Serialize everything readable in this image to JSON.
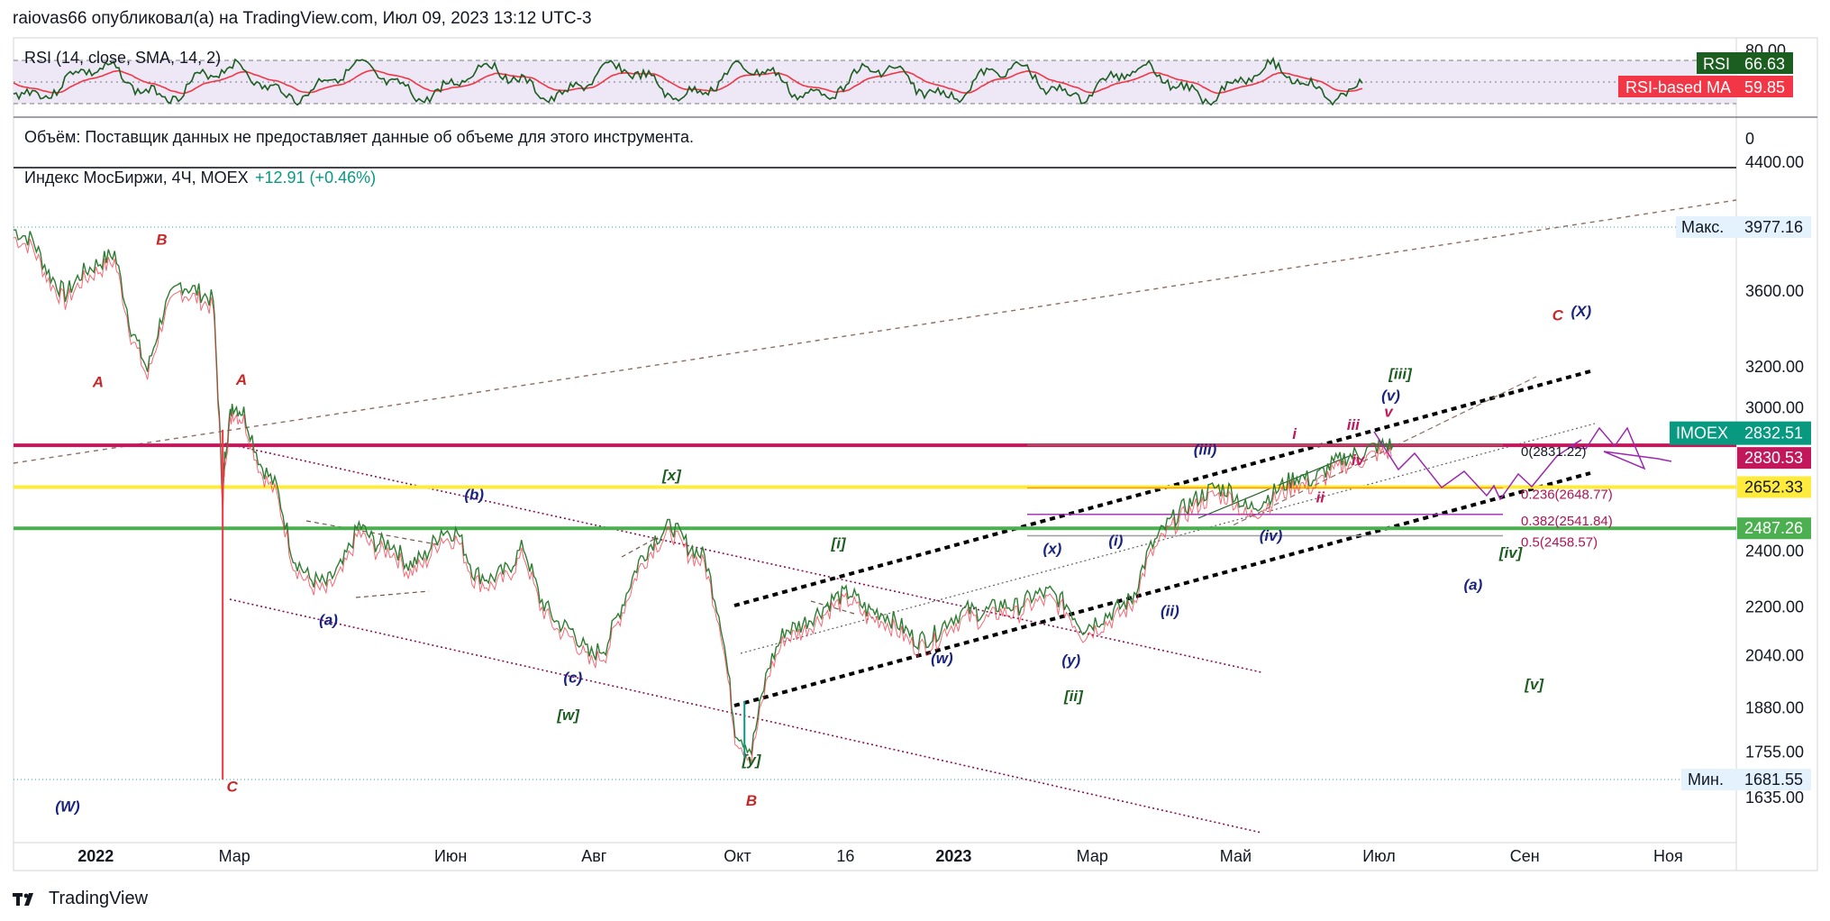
{
  "header": {
    "title": "raiovas66 опубликовал(а) на TradingView.com, Июл 09, 2023 13:12 UTC-3"
  },
  "rsi_pane": {
    "legend": "RSI (14, close, SMA, 14, 2)",
    "top_tick": "80.00",
    "tag_rsi_label": "RSI",
    "tag_rsi_value": "66.63",
    "tag_ma_label": "RSI-based MA",
    "tag_ma_value": "59.85",
    "colors": {
      "rsi": "#1b5e20",
      "ma": "#f23645",
      "band": "#ede7f6"
    }
  },
  "volume_pane": {
    "legend": "Объём: Поставщик данных не предоставляет данные об объеме для этого инструмента.",
    "tick": "0"
  },
  "main_pane": {
    "legend_name": "Индекс МосБиржи, 4Ч, MOEX",
    "legend_change": "+12.91 (+0.46%)",
    "max_label": "Макс.",
    "max_value": "3977.16",
    "min_label": "Мин.",
    "min_value": "1681.55",
    "tag_symbol": "IMOEX",
    "tag_price": "2832.51",
    "tag_level_red": "2830.53",
    "tag_level_yellow": "2652.33",
    "tag_level_green": "2487.26",
    "colors": {
      "candle_up": "#089981",
      "candle_down": "#f23645",
      "red_line": "#c2185b",
      "yellow_line": "#ffeb3b",
      "green_line": "#4caf50",
      "projection": "#9c27b0"
    }
  },
  "fib_labels": [
    {
      "text": "0(2831.22)",
      "y": 2831.22
    },
    {
      "text": "0.236(2648.77)",
      "y": 2648.77
    },
    {
      "text": "0.382(2541.84)",
      "y": 2541.84
    },
    {
      "text": "0.5(2458.57)",
      "y": 2458.57
    }
  ],
  "wave_labels": [
    {
      "text": "B",
      "x": "2022-01-29",
      "y": 3870,
      "color": "#c62828"
    },
    {
      "text": "A",
      "x": "2022-01-02",
      "y": 3100,
      "color": "#c62828"
    },
    {
      "text": "A",
      "x": "2022-03-04",
      "y": 3110,
      "color": "#c62828"
    },
    {
      "text": "C",
      "x": "2022-02-28",
      "y": 1650,
      "color": "#c62828"
    },
    {
      "text": "(W)",
      "x": "2021-12-20",
      "y": 1600,
      "color": "#1a237e"
    },
    {
      "text": "(b)",
      "x": "2022-06-11",
      "y": 2600,
      "color": "#1a237e"
    },
    {
      "text": "(a)",
      "x": "2022-04-10",
      "y": 2140,
      "color": "#1a237e"
    },
    {
      "text": "(c)",
      "x": "2022-07-23",
      "y": 1955,
      "color": "#1a237e"
    },
    {
      "text": "[w]",
      "x": "2022-07-21",
      "y": 1845,
      "color": "#1b5e20"
    },
    {
      "text": "[x]",
      "x": "2022-09-03",
      "y": 2680,
      "color": "#1b5e20"
    },
    {
      "text": "[y]",
      "x": "2022-10-07",
      "y": 1720,
      "color": "#1b5e20"
    },
    {
      "text": "B",
      "x": "2022-10-07",
      "y": 1615,
      "color": "#c62828"
    },
    {
      "text": "[i]",
      "x": "2022-11-13",
      "y": 2410,
      "color": "#1b5e20"
    },
    {
      "text": "(w)",
      "x": "2022-12-27",
      "y": 2015,
      "color": "#1a237e"
    },
    {
      "text": "(x)",
      "x": "2023-02-12",
      "y": 2390,
      "color": "#1a237e"
    },
    {
      "text": "(y)",
      "x": "2023-02-20",
      "y": 2010,
      "color": "#1a237e"
    },
    {
      "text": "[ii]",
      "x": "2023-02-21",
      "y": 1900,
      "color": "#1b5e20"
    },
    {
      "text": "(i)",
      "x": "2023-03-11",
      "y": 2420,
      "color": "#1a237e"
    },
    {
      "text": "(ii)",
      "x": "2023-04-03",
      "y": 2170,
      "color": "#1a237e"
    },
    {
      "text": "(iii)",
      "x": "2023-04-18",
      "y": 2790,
      "color": "#1a237e"
    },
    {
      "text": "(iv)",
      "x": "2023-05-16",
      "y": 2440,
      "color": "#1a237e"
    },
    {
      "text": "i",
      "x": "2023-05-26",
      "y": 2860,
      "color": "#c2185b"
    },
    {
      "text": "ii",
      "x": "2023-06-06",
      "y": 2590,
      "color": "#c2185b"
    },
    {
      "text": "iii",
      "x": "2023-06-20",
      "y": 2900,
      "color": "#c2185b"
    },
    {
      "text": "iv",
      "x": "2023-06-22",
      "y": 2745,
      "color": "#c2185b"
    },
    {
      "text": "v",
      "x": "2023-07-05",
      "y": 2960,
      "color": "#c2185b"
    },
    {
      "text": "(v)",
      "x": "2023-07-06",
      "y": 3035,
      "color": "#1a237e"
    },
    {
      "text": "[iii]",
      "x": "2023-07-10",
      "y": 3140,
      "color": "#1b5e20"
    },
    {
      "text": "[iv]",
      "x": "2023-08-26",
      "y": 2375,
      "color": "#1b5e20"
    },
    {
      "text": "(a)",
      "x": "2023-08-10",
      "y": 2260,
      "color": "#1a237e"
    },
    {
      "text": "[v]",
      "x": "2023-09-05",
      "y": 1935,
      "color": "#1b5e20"
    },
    {
      "text": "C",
      "x": "2023-09-15",
      "y": 3440,
      "color": "#c62828"
    },
    {
      "text": "(X)",
      "x": "2023-09-25",
      "y": 3460,
      "color": "#1a237e"
    }
  ],
  "chart_data": {
    "type": "line",
    "title": "Индекс МосБиржи, 4Ч, MOEX",
    "x_ticks": [
      "2022",
      "Мар",
      "Июн",
      "Авг",
      "Окт",
      "16",
      "2023",
      "Мар",
      "Май",
      "Июл",
      "Сен",
      "Ноя"
    ],
    "y_ticks": [
      4400,
      3600,
      3200,
      3000,
      2400,
      2200,
      2040,
      1880,
      1755,
      1635
    ],
    "y_scale": "log",
    "xlim": [
      "2021-11-27",
      "2023-11-30"
    ],
    "ylim": [
      1560,
      4500
    ],
    "series": [
      {
        "x": [
          "2021-11-27",
          "2021-12-05",
          "2021-12-12",
          "2021-12-19",
          "2021-12-26",
          "2022-01-02",
          "2022-01-09",
          "2022-01-16",
          "2022-01-23",
          "2022-01-30",
          "2022-02-06",
          "2022-02-13",
          "2022-02-20",
          "2022-02-24",
          "2022-02-25",
          "2022-02-28",
          "2022-03-05",
          "2022-03-12",
          "2022-03-19",
          "2022-03-26",
          "2022-04-02",
          "2022-04-09",
          "2022-04-16",
          "2022-04-23",
          "2022-04-30",
          "2022-05-07",
          "2022-05-14",
          "2022-05-21",
          "2022-05-28",
          "2022-06-04",
          "2022-06-11",
          "2022-06-18",
          "2022-06-25",
          "2022-07-02",
          "2022-07-09",
          "2022-07-16",
          "2022-07-23",
          "2022-07-30",
          "2022-08-06",
          "2022-08-13",
          "2022-08-20",
          "2022-08-27",
          "2022-09-03",
          "2022-09-10",
          "2022-09-17",
          "2022-09-24",
          "2022-09-30",
          "2022-10-07",
          "2022-10-14",
          "2022-10-21",
          "2022-10-28",
          "2022-11-04",
          "2022-11-11",
          "2022-11-18",
          "2022-11-25",
          "2022-12-02",
          "2022-12-09",
          "2022-12-16",
          "2022-12-23",
          "2022-12-30",
          "2023-01-07",
          "2023-01-14",
          "2023-01-21",
          "2023-01-28",
          "2023-02-04",
          "2023-02-11",
          "2023-02-18",
          "2023-02-25",
          "2023-03-04",
          "2023-03-11",
          "2023-03-18",
          "2023-03-25",
          "2023-04-01",
          "2023-04-08",
          "2023-04-15",
          "2023-04-22",
          "2023-04-29",
          "2023-05-06",
          "2023-05-13",
          "2023-05-20",
          "2023-05-27",
          "2023-06-03",
          "2023-06-10",
          "2023-06-17",
          "2023-06-24",
          "2023-07-01",
          "2023-07-07"
        ],
        "values": [
          3960,
          3900,
          3700,
          3580,
          3700,
          3760,
          3820,
          3400,
          3180,
          3500,
          3640,
          3600,
          3550,
          2600,
          2800,
          3020,
          2980,
          2750,
          2650,
          2380,
          2300,
          2280,
          2350,
          2500,
          2430,
          2430,
          2350,
          2380,
          2480,
          2470,
          2320,
          2300,
          2330,
          2420,
          2230,
          2150,
          2120,
          2040,
          2070,
          2210,
          2360,
          2450,
          2500,
          2420,
          2380,
          2150,
          1820,
          1760,
          2000,
          2120,
          2140,
          2180,
          2230,
          2250,
          2190,
          2180,
          2140,
          2090,
          2100,
          2160,
          2190,
          2180,
          2210,
          2200,
          2240,
          2250,
          2210,
          2130,
          2160,
          2190,
          2230,
          2400,
          2490,
          2560,
          2610,
          2650,
          2640,
          2560,
          2600,
          2650,
          2700,
          2680,
          2740,
          2780,
          2800,
          2830,
          2832.51
        ]
      }
    ]
  }
}
